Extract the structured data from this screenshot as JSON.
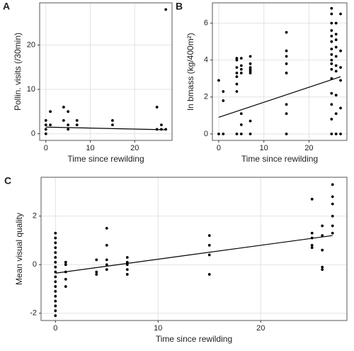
{
  "chart_data": [
    {
      "type": "scatter",
      "label": "A",
      "xlabel": "Time since rewilding",
      "ylabel": "Pollin. visits (/30min)",
      "x": [
        0,
        0,
        0,
        0,
        1,
        1,
        4,
        4,
        5,
        5,
        5,
        7,
        7,
        15,
        15,
        25,
        25,
        26,
        26,
        27,
        27
      ],
      "values": [
        0,
        1,
        2,
        3,
        2,
        5,
        3,
        6,
        1,
        2,
        5,
        2,
        3,
        2,
        3,
        1,
        6,
        2,
        1,
        1,
        28
      ],
      "fit": {
        "x": [
          0,
          27
        ],
        "values": [
          1.5,
          0.9
        ]
      },
      "xlim": [
        -1.4,
        28.4
      ],
      "ylim": [
        -1.5,
        29.5
      ],
      "xticks": [
        0,
        10,
        20
      ],
      "yticks": [
        0,
        10,
        20
      ],
      "grid": true,
      "color": "#000000"
    },
    {
      "type": "scatter",
      "label": "B",
      "xlabel": "Time since rewilding",
      "ylabel": "ln bmass (kg/400m²)",
      "x": [
        0,
        0,
        1,
        1,
        1,
        4,
        4,
        4,
        4,
        4,
        4,
        4,
        4,
        5,
        5,
        5,
        5,
        5,
        5,
        5,
        7,
        7,
        7,
        7,
        7,
        7,
        7,
        7,
        15,
        15,
        15,
        15,
        15,
        15,
        15,
        15,
        25,
        25,
        25,
        25,
        25,
        25,
        25,
        25,
        25,
        25,
        25,
        25,
        25,
        25,
        25,
        25,
        26,
        26,
        26,
        26,
        26,
        26,
        26,
        26,
        26,
        26,
        27,
        27,
        27,
        27,
        27,
        27
      ],
      "values": [
        0,
        2.9,
        0,
        1.8,
        2.3,
        0,
        2.3,
        2.7,
        3.1,
        3.3,
        3.6,
        4.0,
        4.1,
        0,
        0.5,
        1.1,
        3.3,
        3.5,
        3.7,
        4.1,
        0,
        0.7,
        3.3,
        3.4,
        3.5,
        3.6,
        3.8,
        4.2,
        0,
        1.1,
        1.6,
        3.3,
        3.8,
        4.2,
        4.5,
        5.5,
        0,
        0.8,
        1.6,
        2.2,
        3.0,
        3.5,
        3.8,
        4.0,
        4.3,
        4.6,
        5.0,
        5.3,
        5.6,
        6.0,
        6.5,
        6.8,
        0,
        1.1,
        2.1,
        3.4,
        3.7,
        4.2,
        4.7,
        5.1,
        5.4,
        6.0,
        0,
        1.4,
        2.9,
        3.6,
        4.5,
        6.5
      ],
      "fit": {
        "x": [
          0,
          27
        ],
        "values": [
          0.9,
          3.1
        ]
      },
      "xlim": [
        -1.4,
        28.4
      ],
      "ylim": [
        -0.35,
        7.1
      ],
      "xticks": [
        0,
        10,
        20
      ],
      "yticks": [
        0,
        2,
        4,
        6
      ],
      "grid": true,
      "color": "#000000"
    },
    {
      "type": "scatter",
      "label": "C",
      "xlabel": "Time since rewilding",
      "ylabel": "Mean visual quality",
      "x": [
        0,
        0,
        0,
        0,
        0,
        0,
        0,
        0,
        0,
        0,
        0,
        0,
        0,
        0,
        0,
        0,
        0,
        0,
        1,
        1,
        1,
        1,
        1,
        4,
        4,
        4,
        5,
        5,
        5,
        5,
        5,
        7,
        7,
        7,
        7,
        7,
        15,
        15,
        15,
        15,
        25,
        25,
        25,
        25,
        25,
        26,
        26,
        26,
        26,
        26,
        27,
        27,
        27,
        27,
        27,
        27
      ],
      "values": [
        -2.1,
        -1.9,
        -1.7,
        -1.5,
        -1.3,
        -1.1,
        -0.9,
        -0.7,
        -0.5,
        -0.3,
        -0.1,
        0.1,
        0.3,
        0.5,
        0.7,
        0.9,
        1.1,
        1.3,
        -0.9,
        -0.6,
        -0.3,
        0,
        0.1,
        -0.4,
        -0.3,
        0.2,
        -0.2,
        0,
        0.2,
        0.8,
        1.5,
        -0.4,
        -0.2,
        0,
        0.1,
        0.3,
        -0.4,
        0.4,
        0.8,
        1.2,
        0.7,
        0.8,
        1.1,
        1.3,
        2.7,
        -0.2,
        -0.1,
        0.6,
        1.2,
        1.6,
        1.3,
        1.6,
        2.0,
        2.5,
        2.8,
        3.3
      ],
      "fit": {
        "x": [
          0,
          27
        ],
        "values": [
          -0.35,
          1.2
        ]
      },
      "xlim": [
        -1.4,
        28.4
      ],
      "ylim": [
        -2.3,
        3.6
      ],
      "xticks": [
        0,
        10,
        20
      ],
      "yticks": [
        -2,
        0,
        2
      ],
      "grid": true,
      "color": "#000000"
    }
  ]
}
